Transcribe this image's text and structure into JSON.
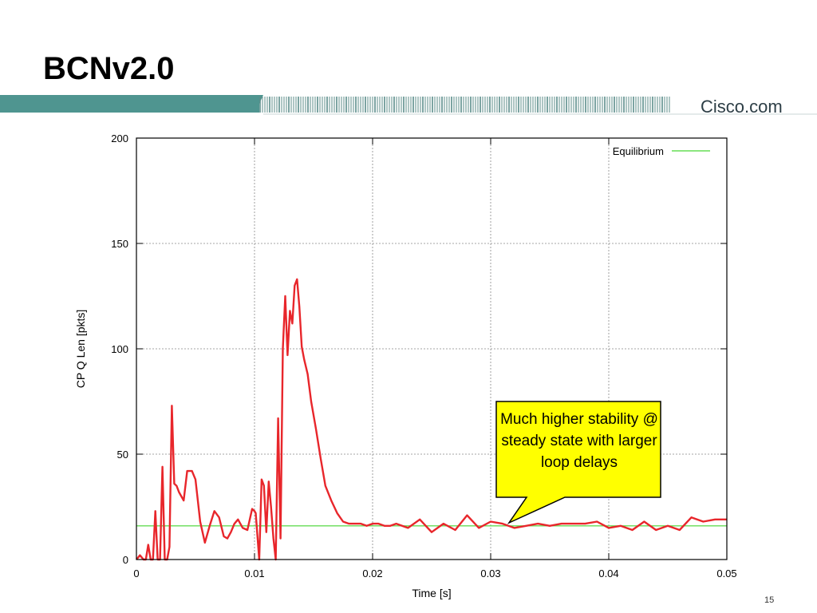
{
  "slide": {
    "title": "BCNv2.0",
    "brand": "Cisco.com",
    "page_number": "15",
    "colors": {
      "band_teal": "#4f9590",
      "band_stripe": "#5c8e8a",
      "series": "#e8262b",
      "equilibrium": "#66dd55",
      "callout_fill": "#ffff00"
    }
  },
  "callout": {
    "text": "Much higher stability @ steady state with larger loop delays"
  },
  "chart_data": {
    "type": "line",
    "title": "",
    "xlabel": "Time [s]",
    "ylabel": "CP Q Len [pkts]",
    "xlim": [
      0,
      0.05
    ],
    "ylim": [
      0,
      200
    ],
    "xticks": [
      0,
      0.01,
      0.02,
      0.03,
      0.04,
      0.05
    ],
    "xtick_labels": [
      "0",
      "0.01",
      "0.02",
      "0.03",
      "0.04",
      "0.05"
    ],
    "yticks": [
      0,
      50,
      100,
      150,
      200
    ],
    "ytick_labels": [
      "0",
      "50",
      "100",
      "150",
      "200"
    ],
    "grid": true,
    "legend_position": "top-right",
    "series": [
      {
        "color": "#e8262b",
        "x": [
          0,
          0.0003,
          0.0006,
          0.0008,
          0.001,
          0.0012,
          0.0014,
          0.0016,
          0.0018,
          0.002,
          0.0022,
          0.0024,
          0.0026,
          0.0028,
          0.003,
          0.0032,
          0.0034,
          0.0036,
          0.004,
          0.0043,
          0.0047,
          0.005,
          0.0054,
          0.0058,
          0.0062,
          0.0066,
          0.007,
          0.0074,
          0.0077,
          0.008,
          0.0083,
          0.0086,
          0.009,
          0.0094,
          0.0098,
          0.01,
          0.0101,
          0.0104,
          0.0106,
          0.0108,
          0.011,
          0.0112,
          0.0114,
          0.0116,
          0.0118,
          0.012,
          0.0122,
          0.0124,
          0.0126,
          0.0128,
          0.013,
          0.0132,
          0.0134,
          0.0136,
          0.0138,
          0.014,
          0.0142,
          0.0145,
          0.0148,
          0.0152,
          0.0156,
          0.016,
          0.0165,
          0.017,
          0.0175,
          0.018,
          0.0185,
          0.019,
          0.0195,
          0.02,
          0.0205,
          0.021,
          0.0215,
          0.022,
          0.023,
          0.024,
          0.025,
          0.026,
          0.027,
          0.028,
          0.029,
          0.03,
          0.031,
          0.032,
          0.033,
          0.034,
          0.035,
          0.036,
          0.037,
          0.038,
          0.039,
          0.04,
          0.041,
          0.042,
          0.043,
          0.044,
          0.045,
          0.046,
          0.047,
          0.048,
          0.049,
          0.05
        ],
        "y": [
          0,
          2,
          0,
          0,
          7,
          0,
          0,
          23,
          0,
          0,
          44,
          0,
          0,
          6,
          73,
          36,
          35,
          32,
          28,
          42,
          42,
          38,
          18,
          8,
          16,
          23,
          20,
          11,
          10,
          13,
          17,
          19,
          15,
          14,
          24,
          23,
          22,
          0,
          38,
          35,
          13,
          37,
          25,
          10,
          0,
          67,
          10,
          100,
          125,
          97,
          118,
          112,
          130,
          133,
          120,
          101,
          95,
          88,
          75,
          62,
          48,
          35,
          28,
          22,
          18,
          17,
          17,
          17,
          16,
          17,
          17,
          16,
          16,
          17,
          15,
          19,
          13,
          17,
          14,
          21,
          15,
          18,
          17,
          15,
          16,
          17,
          16,
          17,
          17,
          17,
          18,
          15,
          16,
          14,
          18,
          14,
          16,
          14,
          20,
          18,
          19,
          19
        ]
      },
      {
        "name": "Equilibrium",
        "color": "#66dd55",
        "x": [
          0,
          0.05
        ],
        "y": [
          16,
          16
        ]
      }
    ]
  }
}
